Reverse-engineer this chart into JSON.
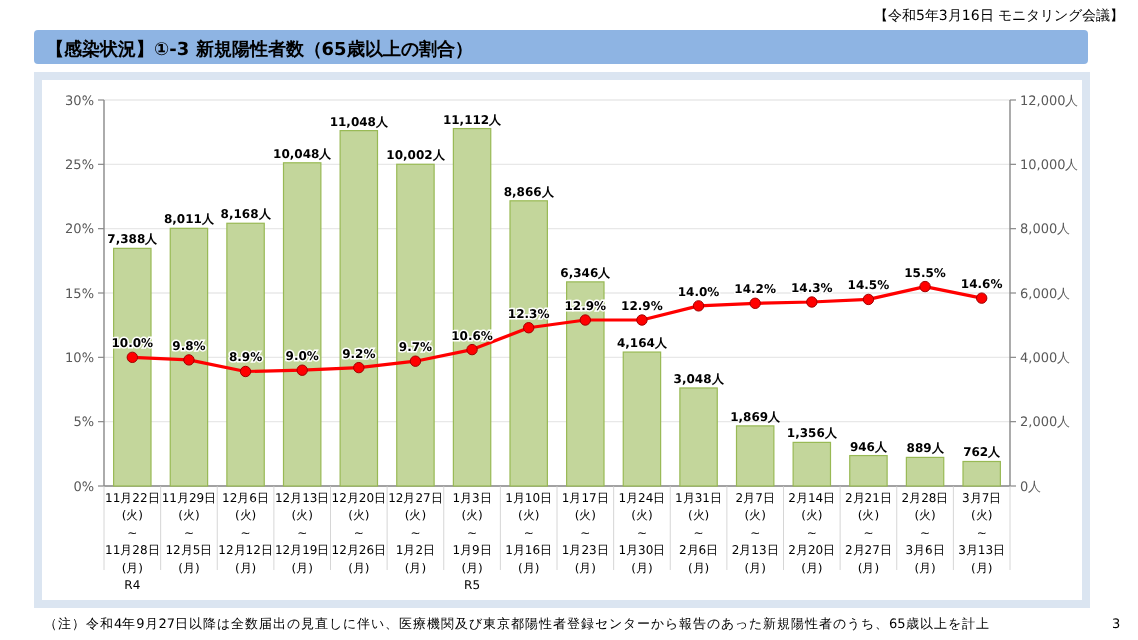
{
  "chart_data": {
    "type": "bar",
    "title": "【感染状況】①-3 新規陽性者数（65歳以上の割合）",
    "categories": [
      "11月22日\n(火)\n~\n11月28日\n(月)\nR4",
      "11月29日\n(火)\n~\n12月5日\n(月)",
      "12月6日\n(火)\n~\n12月12日\n(月)",
      "12月13日\n(火)\n~\n12月19日\n(月)",
      "12月20日\n(火)\n~\n12月26日\n(月)",
      "12月27日\n(火)\n~\n1月2日\n(月)",
      "1月3日\n(火)\n~\n1月9日\n(月)\nR5",
      "1月10日\n(火)\n~\n1月16日\n(月)",
      "1月17日\n(火)\n~\n1月23日\n(月)",
      "1月24日\n(火)\n~\n1月30日\n(月)",
      "1月31日\n(火)\n~\n2月6日\n(月)",
      "2月7日\n(火)\n~\n2月13日\n(月)",
      "2月14日\n(火)\n~\n2月20日\n(月)",
      "2月21日\n(火)\n~\n2月27日\n(月)",
      "2月28日\n(火)\n~\n3月6日\n(月)",
      "3月7日\n(火)\n~\n3月13日\n(月)"
    ],
    "series": [
      {
        "axis": "y2",
        "color": "#c3d69b",
        "values": [
          7388,
          8011,
          8168,
          10048,
          11048,
          10002,
          11112,
          8866,
          6346,
          4164,
          3048,
          1869,
          1356,
          946,
          889,
          762
        ],
        "value_labels": [
          "7,388人",
          "8,011人",
          "8,168人",
          "10,048人",
          "11,048人",
          "10,002人",
          "11,112人",
          "8,866人",
          "6,346人",
          "4,164人",
          "3,048人",
          "1,869人",
          "1,356人",
          "946人",
          "889人",
          "762人"
        ]
      },
      {
        "type": "line",
        "color": "#ff0000",
        "values": [
          10.0,
          9.8,
          8.9,
          9.0,
          9.2,
          9.7,
          10.6,
          12.3,
          12.9,
          12.9,
          14.0,
          14.2,
          14.3,
          14.5,
          15.5,
          14.6
        ],
        "value_labels": [
          "10.0%",
          "9.8%",
          "8.9%",
          "9.0%",
          "9.2%",
          "9.7%",
          "10.6%",
          "12.3%",
          "12.9%",
          "12.9%",
          "14.0%",
          "14.2%",
          "14.3%",
          "14.5%",
          "15.5%",
          "14.6%"
        ]
      }
    ],
    "ylim": [
      0,
      30
    ],
    "yticks": [
      {
        "value": 0,
        "label": "0%"
      },
      {
        "value": 5,
        "label": "5%"
      },
      {
        "value": 10,
        "label": "10%"
      },
      {
        "value": 15,
        "label": "15%"
      },
      {
        "value": 20,
        "label": "20%"
      },
      {
        "value": 25,
        "label": "25%"
      },
      {
        "value": 30,
        "label": "30%"
      }
    ],
    "y2lim": [
      0,
      12000
    ],
    "y2ticks": [
      {
        "value": 0,
        "label": "0人"
      },
      {
        "value": 2000,
        "label": "2,000人"
      },
      {
        "value": 4000,
        "label": "4,000人"
      },
      {
        "value": 6000,
        "label": "6,000人"
      },
      {
        "value": 8000,
        "label": "8,000人"
      },
      {
        "value": 10000,
        "label": "10,000人"
      },
      {
        "value": 12000,
        "label": "12,000人"
      }
    ],
    "grid": "y",
    "marker": "circle",
    "line_style": "solid",
    "annotations": [
      "【令和5年3月16日 モニタリング会議】",
      "（注）令和4年9月27日以降は全数届出の見直しに伴い、医療機関及び東京都陽性者登録センターから報告のあった新規陽性者のうち、65歳以上を計上",
      "3"
    ]
  }
}
